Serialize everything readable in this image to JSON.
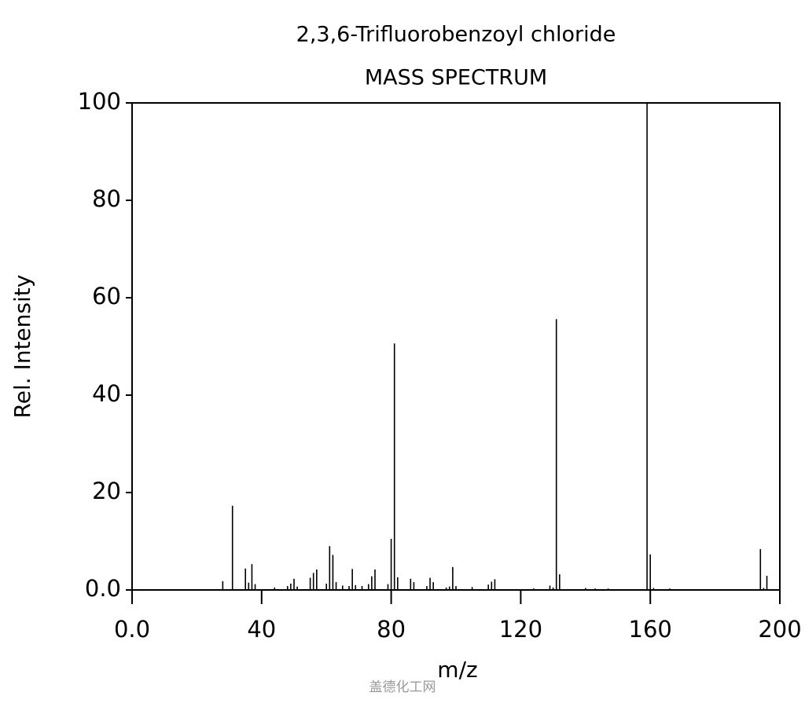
{
  "chart_data": {
    "type": "bar",
    "title": "2,3,6-Trifluorobenzoyl chloride",
    "subtitle": "MASS SPECTRUM",
    "xlabel": "m/z",
    "ylabel": "Rel. Intensity",
    "watermark": "盖德化工网",
    "color": "#000000",
    "x": [
      28,
      31,
      35,
      36,
      37,
      38,
      44,
      48,
      49,
      50,
      51,
      55,
      56,
      57,
      60,
      61,
      62,
      63,
      65,
      67,
      68,
      69,
      71,
      73,
      74,
      75,
      79,
      80,
      81,
      82,
      86,
      87,
      91,
      92,
      93,
      97,
      98,
      99,
      100,
      105,
      110,
      111,
      112,
      124,
      129,
      130,
      131,
      132,
      140,
      143,
      147,
      159,
      160,
      161,
      166,
      194,
      195,
      196
    ],
    "values": [
      1.8,
      17.3,
      4.4,
      1.5,
      5.3,
      1.2,
      0.5,
      0.8,
      1.3,
      2.3,
      0.7,
      2.5,
      3.5,
      4.2,
      1.3,
      9.0,
      7.2,
      1.6,
      0.9,
      0.8,
      4.3,
      1.0,
      0.8,
      1.2,
      2.8,
      4.2,
      1.2,
      10.5,
      50.6,
      2.6,
      2.3,
      1.6,
      0.8,
      2.5,
      1.6,
      0.5,
      0.7,
      4.7,
      0.8,
      0.6,
      1.1,
      1.7,
      2.2,
      0.3,
      0.9,
      0.5,
      55.6,
      3.2,
      0.4,
      0.3,
      0.3,
      100,
      7.3,
      0.4,
      0.3,
      8.4,
      0.4,
      2.9
    ],
    "xlim": [
      0,
      200
    ],
    "xticks": [
      {
        "value": 0,
        "label": "0.0"
      },
      40,
      80,
      120,
      160,
      200
    ],
    "ylim": [
      0,
      100
    ],
    "yticks": [
      {
        "value": 0,
        "label": "0.0"
      },
      20,
      40,
      60,
      80,
      100
    ],
    "grid": false
  }
}
